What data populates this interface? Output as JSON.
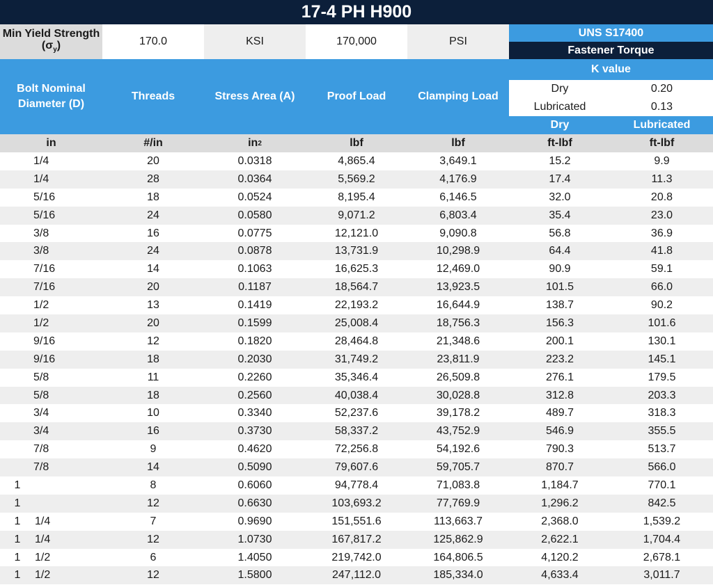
{
  "title": "17-4 PH H900",
  "yield": {
    "label_line1": "Min Yield Strength",
    "label_line2_sym": "σ",
    "label_line2_sub": "y",
    "ksi_value": "170.0",
    "ksi_unit": "KSI",
    "psi_value": "170,000",
    "psi_unit": "PSI"
  },
  "uns": "UNS S17400",
  "fastener_torque": "Fastener Torque",
  "headers": {
    "diameter_line1": "Bolt Nominal",
    "diameter_line2": "Diameter (D)",
    "threads": "Threads",
    "stress_area": "Stress Area (A)",
    "proof_load": "Proof Load",
    "clamping_load": "Clamping Load",
    "k_title": "K value",
    "k_dry_label": "Dry",
    "k_dry_value": "0.20",
    "k_lub_label": "Lubricated",
    "k_lub_value": "0.13",
    "dry": "Dry",
    "lubricated": "Lubricated"
  },
  "units": {
    "diameter": "in",
    "threads": "#/in",
    "area_base": "in",
    "area_sup": "2",
    "proof": "lbf",
    "clamp": "lbf",
    "dry": "ft-lbf",
    "lub": "ft-lbf"
  },
  "rows": [
    {
      "whole": "",
      "frac": "1/4",
      "threads": "20",
      "area": "0.0318",
      "proof": "4,865.4",
      "clamp": "3,649.1",
      "dry": "15.2",
      "lub": "9.9"
    },
    {
      "whole": "",
      "frac": "1/4",
      "threads": "28",
      "area": "0.0364",
      "proof": "5,569.2",
      "clamp": "4,176.9",
      "dry": "17.4",
      "lub": "11.3"
    },
    {
      "whole": "",
      "frac": "5/16",
      "threads": "18",
      "area": "0.0524",
      "proof": "8,195.4",
      "clamp": "6,146.5",
      "dry": "32.0",
      "lub": "20.8"
    },
    {
      "whole": "",
      "frac": "5/16",
      "threads": "24",
      "area": "0.0580",
      "proof": "9,071.2",
      "clamp": "6,803.4",
      "dry": "35.4",
      "lub": "23.0"
    },
    {
      "whole": "",
      "frac": "3/8",
      "threads": "16",
      "area": "0.0775",
      "proof": "12,121.0",
      "clamp": "9,090.8",
      "dry": "56.8",
      "lub": "36.9"
    },
    {
      "whole": "",
      "frac": "3/8",
      "threads": "24",
      "area": "0.0878",
      "proof": "13,731.9",
      "clamp": "10,298.9",
      "dry": "64.4",
      "lub": "41.8"
    },
    {
      "whole": "",
      "frac": "7/16",
      "threads": "14",
      "area": "0.1063",
      "proof": "16,625.3",
      "clamp": "12,469.0",
      "dry": "90.9",
      "lub": "59.1"
    },
    {
      "whole": "",
      "frac": "7/16",
      "threads": "20",
      "area": "0.1187",
      "proof": "18,564.7",
      "clamp": "13,923.5",
      "dry": "101.5",
      "lub": "66.0"
    },
    {
      "whole": "",
      "frac": "1/2",
      "threads": "13",
      "area": "0.1419",
      "proof": "22,193.2",
      "clamp": "16,644.9",
      "dry": "138.7",
      "lub": "90.2"
    },
    {
      "whole": "",
      "frac": "1/2",
      "threads": "20",
      "area": "0.1599",
      "proof": "25,008.4",
      "clamp": "18,756.3",
      "dry": "156.3",
      "lub": "101.6"
    },
    {
      "whole": "",
      "frac": "9/16",
      "threads": "12",
      "area": "0.1820",
      "proof": "28,464.8",
      "clamp": "21,348.6",
      "dry": "200.1",
      "lub": "130.1"
    },
    {
      "whole": "",
      "frac": "9/16",
      "threads": "18",
      "area": "0.2030",
      "proof": "31,749.2",
      "clamp": "23,811.9",
      "dry": "223.2",
      "lub": "145.1"
    },
    {
      "whole": "",
      "frac": "5/8",
      "threads": "11",
      "area": "0.2260",
      "proof": "35,346.4",
      "clamp": "26,509.8",
      "dry": "276.1",
      "lub": "179.5"
    },
    {
      "whole": "",
      "frac": "5/8",
      "threads": "18",
      "area": "0.2560",
      "proof": "40,038.4",
      "clamp": "30,028.8",
      "dry": "312.8",
      "lub": "203.3"
    },
    {
      "whole": "",
      "frac": "3/4",
      "threads": "10",
      "area": "0.3340",
      "proof": "52,237.6",
      "clamp": "39,178.2",
      "dry": "489.7",
      "lub": "318.3"
    },
    {
      "whole": "",
      "frac": "3/4",
      "threads": "16",
      "area": "0.3730",
      "proof": "58,337.2",
      "clamp": "43,752.9",
      "dry": "546.9",
      "lub": "355.5"
    },
    {
      "whole": "",
      "frac": "7/8",
      "threads": "9",
      "area": "0.4620",
      "proof": "72,256.8",
      "clamp": "54,192.6",
      "dry": "790.3",
      "lub": "513.7"
    },
    {
      "whole": "",
      "frac": "7/8",
      "threads": "14",
      "area": "0.5090",
      "proof": "79,607.6",
      "clamp": "59,705.7",
      "dry": "870.7",
      "lub": "566.0"
    },
    {
      "whole": "1",
      "frac": "",
      "threads": "8",
      "area": "0.6060",
      "proof": "94,778.4",
      "clamp": "71,083.8",
      "dry": "1,184.7",
      "lub": "770.1"
    },
    {
      "whole": "1",
      "frac": "",
      "threads": "12",
      "area": "0.6630",
      "proof": "103,693.2",
      "clamp": "77,769.9",
      "dry": "1,296.2",
      "lub": "842.5"
    },
    {
      "whole": "1",
      "frac": "1/4",
      "threads": "7",
      "area": "0.9690",
      "proof": "151,551.6",
      "clamp": "113,663.7",
      "dry": "2,368.0",
      "lub": "1,539.2"
    },
    {
      "whole": "1",
      "frac": "1/4",
      "threads": "12",
      "area": "1.0730",
      "proof": "167,817.2",
      "clamp": "125,862.9",
      "dry": "2,622.1",
      "lub": "1,704.4"
    },
    {
      "whole": "1",
      "frac": "1/2",
      "threads": "6",
      "area": "1.4050",
      "proof": "219,742.0",
      "clamp": "164,806.5",
      "dry": "4,120.2",
      "lub": "2,678.1"
    },
    {
      "whole": "1",
      "frac": "1/2",
      "threads": "12",
      "area": "1.5800",
      "proof": "247,112.0",
      "clamp": "185,334.0",
      "dry": "4,633.4",
      "lub": "3,011.7"
    }
  ]
}
